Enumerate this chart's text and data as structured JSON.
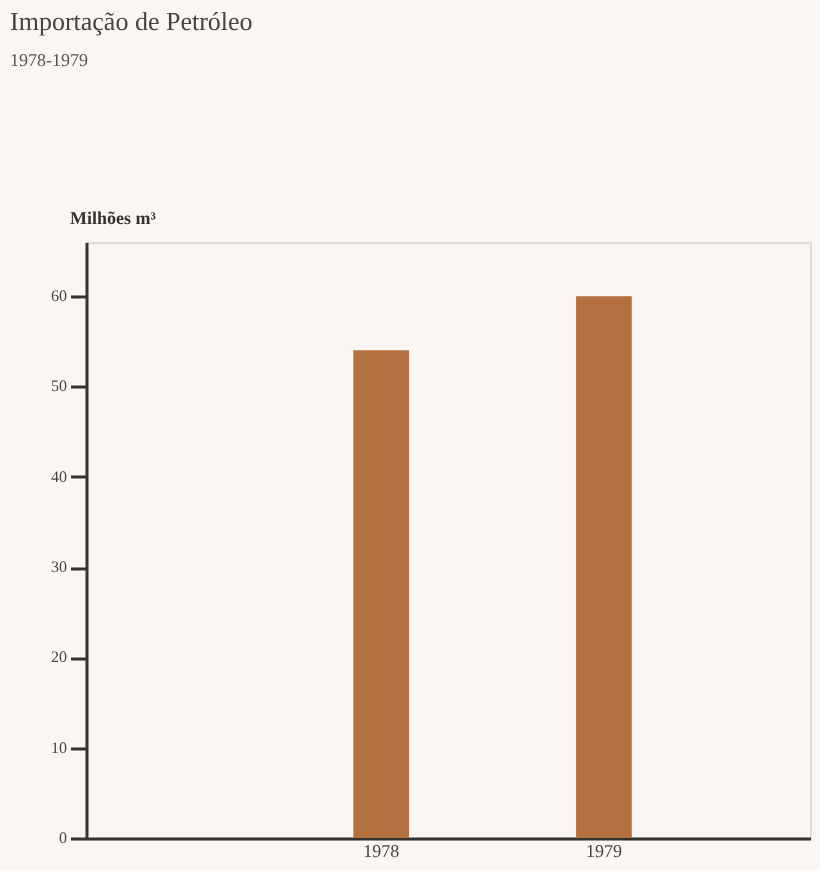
{
  "chart_data": {
    "type": "bar",
    "title": "Importação de Petróleo",
    "subtitle": "1978-1979",
    "ylabel": "Milhões m³",
    "categories": [
      "1978",
      "1979"
    ],
    "values": [
      54,
      60
    ],
    "color": "#b5703f",
    "ylim": [
      0,
      66
    ],
    "yticks": [
      0,
      10,
      20,
      30,
      40,
      50,
      60
    ],
    "grid": false
  }
}
